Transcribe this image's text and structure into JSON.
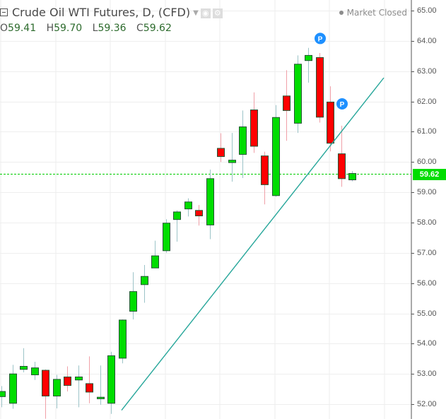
{
  "header": {
    "title": "Crude Oil WTI Futures, D, (CFD)",
    "ohlc": {
      "o_label": "O",
      "o": "59.41",
      "h_label": "H",
      "h": "59.70",
      "l_label": "L",
      "l": "59.36",
      "c_label": "C",
      "c": "59.62"
    },
    "market_status": "Market Closed",
    "icons": [
      "collapse-toggle-icon",
      "caret-down-icon",
      "eye-icon",
      "gear-icon"
    ]
  },
  "colors": {
    "up": "#00dd00",
    "down": "#ff0000",
    "up_border": "#225533",
    "up_wick": "#9cc4c8",
    "down_wick": "#f0a0a8",
    "trendline": "#26a69a",
    "grid": "#eeeeee",
    "price_line": "#00cc00",
    "marker": "#1e90ff"
  },
  "chart_data": {
    "type": "candlestick",
    "title": "Crude Oil WTI Futures, D, (CFD)",
    "xlabel": "",
    "ylabel": "",
    "ylim": [
      51.7,
      65.2
    ],
    "y_ticks": [
      "65.00",
      "64.00",
      "63.00",
      "62.00",
      "61.00",
      "60.00",
      "59.00",
      "58.00",
      "57.00",
      "56.00",
      "55.00",
      "54.00",
      "53.00",
      "52.00"
    ],
    "grid": true,
    "current_price": "59.62",
    "candles": [
      {
        "o": 52.25,
        "h": 52.6,
        "l": 51.9,
        "c": 52.42
      },
      {
        "o": 52.03,
        "h": 53.3,
        "l": 51.85,
        "c": 53.0
      },
      {
        "o": 53.15,
        "h": 53.85,
        "l": 53.05,
        "c": 53.25
      },
      {
        "o": 52.97,
        "h": 53.4,
        "l": 52.8,
        "c": 53.2
      },
      {
        "o": 53.12,
        "h": 53.15,
        "l": 51.52,
        "c": 52.27
      },
      {
        "o": 52.27,
        "h": 52.97,
        "l": 51.86,
        "c": 52.82
      },
      {
        "o": 52.9,
        "h": 53.25,
        "l": 52.42,
        "c": 52.62
      },
      {
        "o": 52.8,
        "h": 53.28,
        "l": 51.9,
        "c": 52.9
      },
      {
        "o": 52.68,
        "h": 53.58,
        "l": 52.03,
        "c": 52.4
      },
      {
        "o": 52.18,
        "h": 53.28,
        "l": 51.98,
        "c": 52.23
      },
      {
        "o": 52.03,
        "h": 53.73,
        "l": 51.68,
        "c": 53.6
      },
      {
        "o": 53.52,
        "h": 54.8,
        "l": 53.35,
        "c": 54.78
      },
      {
        "o": 55.07,
        "h": 56.36,
        "l": 54.8,
        "c": 55.72
      },
      {
        "o": 55.95,
        "h": 56.6,
        "l": 55.35,
        "c": 56.22
      },
      {
        "o": 56.5,
        "h": 57.4,
        "l": 56.5,
        "c": 56.9
      },
      {
        "o": 57.07,
        "h": 58.11,
        "l": 57.0,
        "c": 57.98
      },
      {
        "o": 58.1,
        "h": 58.4,
        "l": 57.37,
        "c": 58.35
      },
      {
        "o": 58.45,
        "h": 58.8,
        "l": 58.2,
        "c": 58.68
      },
      {
        "o": 58.4,
        "h": 58.58,
        "l": 57.9,
        "c": 58.22
      },
      {
        "o": 57.92,
        "h": 59.75,
        "l": 57.45,
        "c": 59.45
      },
      {
        "o": 60.45,
        "h": 60.95,
        "l": 60.0,
        "c": 60.18
      },
      {
        "o": 59.98,
        "h": 60.96,
        "l": 59.35,
        "c": 60.06
      },
      {
        "o": 60.25,
        "h": 61.7,
        "l": 59.47,
        "c": 61.16
      },
      {
        "o": 61.72,
        "h": 62.3,
        "l": 60.3,
        "c": 60.52
      },
      {
        "o": 60.2,
        "h": 60.34,
        "l": 58.6,
        "c": 59.25
      },
      {
        "o": 58.89,
        "h": 61.88,
        "l": 58.85,
        "c": 61.47
      },
      {
        "o": 62.18,
        "h": 63.03,
        "l": 60.7,
        "c": 61.7
      },
      {
        "o": 61.28,
        "h": 63.52,
        "l": 60.96,
        "c": 63.23
      },
      {
        "o": 63.35,
        "h": 63.77,
        "l": 62.62,
        "c": 63.52
      },
      {
        "o": 63.45,
        "h": 63.6,
        "l": 61.3,
        "c": 61.48
      },
      {
        "o": 61.98,
        "h": 62.5,
        "l": 60.35,
        "c": 60.62
      },
      {
        "o": 60.27,
        "h": 61.2,
        "l": 59.18,
        "c": 59.45
      },
      {
        "o": 59.41,
        "h": 59.7,
        "l": 59.36,
        "c": 59.62
      }
    ],
    "trendline": {
      "from": {
        "x": 172,
        "price": 51.8
      },
      "to": {
        "x": 543,
        "price": 62.78
      }
    },
    "markers": [
      {
        "label": "P",
        "candle_index": 29,
        "price": 64.08
      },
      {
        "label": "P",
        "candle_index": 31,
        "price": 61.92
      }
    ]
  }
}
